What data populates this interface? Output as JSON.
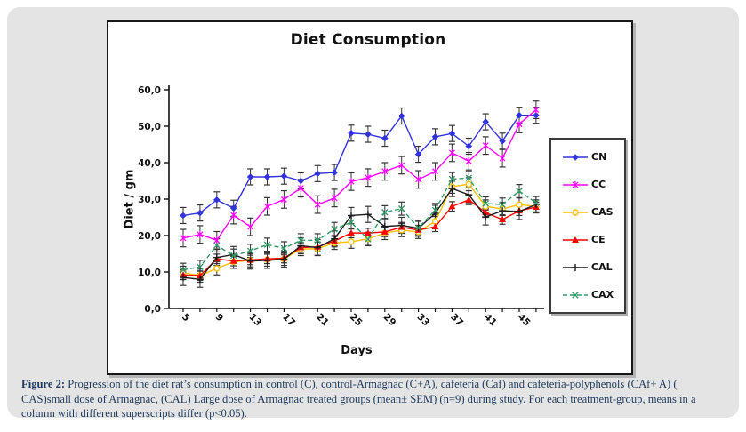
{
  "figure": {
    "caption_label": "Figure 2:",
    "caption_text": " Progression of the diet rat’s consumption in control (C), control-Armagnac (C+A), cafeteria (Caf) and cafeteria-polyphenols (CAf+ A) ( CAS)small dose of Armagnac, (CAL) Large dose of Armagnac treated groups (mean± SEM) (n=9) during study. For each treatment-group, means in a column with different superscripts differ (p<0.05)."
  },
  "colors": {
    "card_background": "#e4e4e4",
    "caption_text": "#1d3a5e",
    "axis": "#111111",
    "error_bar": "#333333"
  },
  "chart_data": {
    "type": "line",
    "title": "Diet Consumption",
    "xlabel": "Days",
    "ylabel": "Diet / gm",
    "ylim": [
      0,
      60
    ],
    "y_tick_labels": [
      "0,0",
      "10,0",
      "20,0",
      "30,0",
      "40,0",
      "50,0",
      "60,0"
    ],
    "y_tick_values": [
      0,
      10,
      20,
      30,
      40,
      50,
      60
    ],
    "x": [
      5,
      7,
      9,
      11,
      13,
      15,
      17,
      19,
      21,
      23,
      25,
      27,
      29,
      31,
      33,
      35,
      37,
      39,
      41,
      43,
      45,
      47
    ],
    "x_major_tick_labels": [
      "5",
      "9",
      "13",
      "17",
      "21",
      "25",
      "29",
      "33",
      "37",
      "41",
      "45"
    ],
    "grid": false,
    "legend_position": "right",
    "error_bars": "mean ± SEM shown on every point",
    "series": [
      {
        "name": "CN",
        "color": "#3333dd",
        "marker": "diamond",
        "dash": "solid",
        "sem": 2.2,
        "values": [
          25.5,
          26.2,
          29.8,
          27.5,
          36.1,
          36.1,
          36.3,
          35.0,
          37.0,
          37.3,
          48.1,
          47.8,
          46.7,
          52.8,
          42.3,
          47.1,
          48.0,
          44.5,
          51.2,
          45.9,
          53.0,
          53.0
        ]
      },
      {
        "name": "CC",
        "color": "#ff00ff",
        "marker": "star",
        "dash": "solid",
        "sem": 2.4,
        "values": [
          19.3,
          20.3,
          18.7,
          25.6,
          22.4,
          28.0,
          29.9,
          33.0,
          28.5,
          30.3,
          34.8,
          35.9,
          37.6,
          39.3,
          35.4,
          37.6,
          42.7,
          40.4,
          44.7,
          41.2,
          50.6,
          54.5
        ]
      },
      {
        "name": "CAS",
        "color": "#ffc000",
        "marker": "circle",
        "dash": "solid",
        "sem": 1.8,
        "values": [
          9.8,
          9.0,
          11.0,
          12.8,
          13.2,
          13.4,
          13.6,
          16.3,
          16.4,
          18.0,
          18.3,
          19.1,
          20.7,
          21.5,
          21.0,
          23.9,
          33.4,
          34.1,
          28.0,
          27.3,
          28.5,
          28.0
        ]
      },
      {
        "name": "CE",
        "color": "#ff0000",
        "marker": "triangle",
        "dash": "solid",
        "sem": 1.3,
        "values": [
          9.2,
          9.0,
          13.6,
          13.0,
          13.3,
          13.6,
          13.8,
          16.7,
          16.9,
          18.5,
          20.7,
          20.7,
          21.0,
          22.3,
          21.5,
          22.4,
          28.0,
          29.8,
          26.3,
          24.4,
          26.8,
          27.8
        ]
      },
      {
        "name": "CAL",
        "color": "#1a1a1a",
        "marker": "plus",
        "dash": "solid",
        "sem": 2.2,
        "values": [
          8.5,
          8.0,
          14.0,
          14.8,
          13.0,
          13.2,
          13.5,
          17.2,
          16.7,
          19.1,
          25.5,
          25.8,
          22.5,
          22.8,
          22.0,
          26.1,
          32.9,
          31.2,
          25.1,
          26.8,
          26.6,
          28.5
        ]
      },
      {
        "name": "CAX",
        "color": "#339966",
        "marker": "x",
        "dash": "dashed",
        "sem": 1.8,
        "values": [
          10.6,
          11.4,
          17.3,
          14.5,
          15.8,
          17.5,
          16.5,
          18.7,
          18.7,
          21.8,
          23.6,
          19.0,
          26.4,
          27.4,
          22.1,
          27.0,
          35.5,
          35.8,
          28.8,
          28.5,
          32.2,
          29.0
        ]
      }
    ]
  }
}
